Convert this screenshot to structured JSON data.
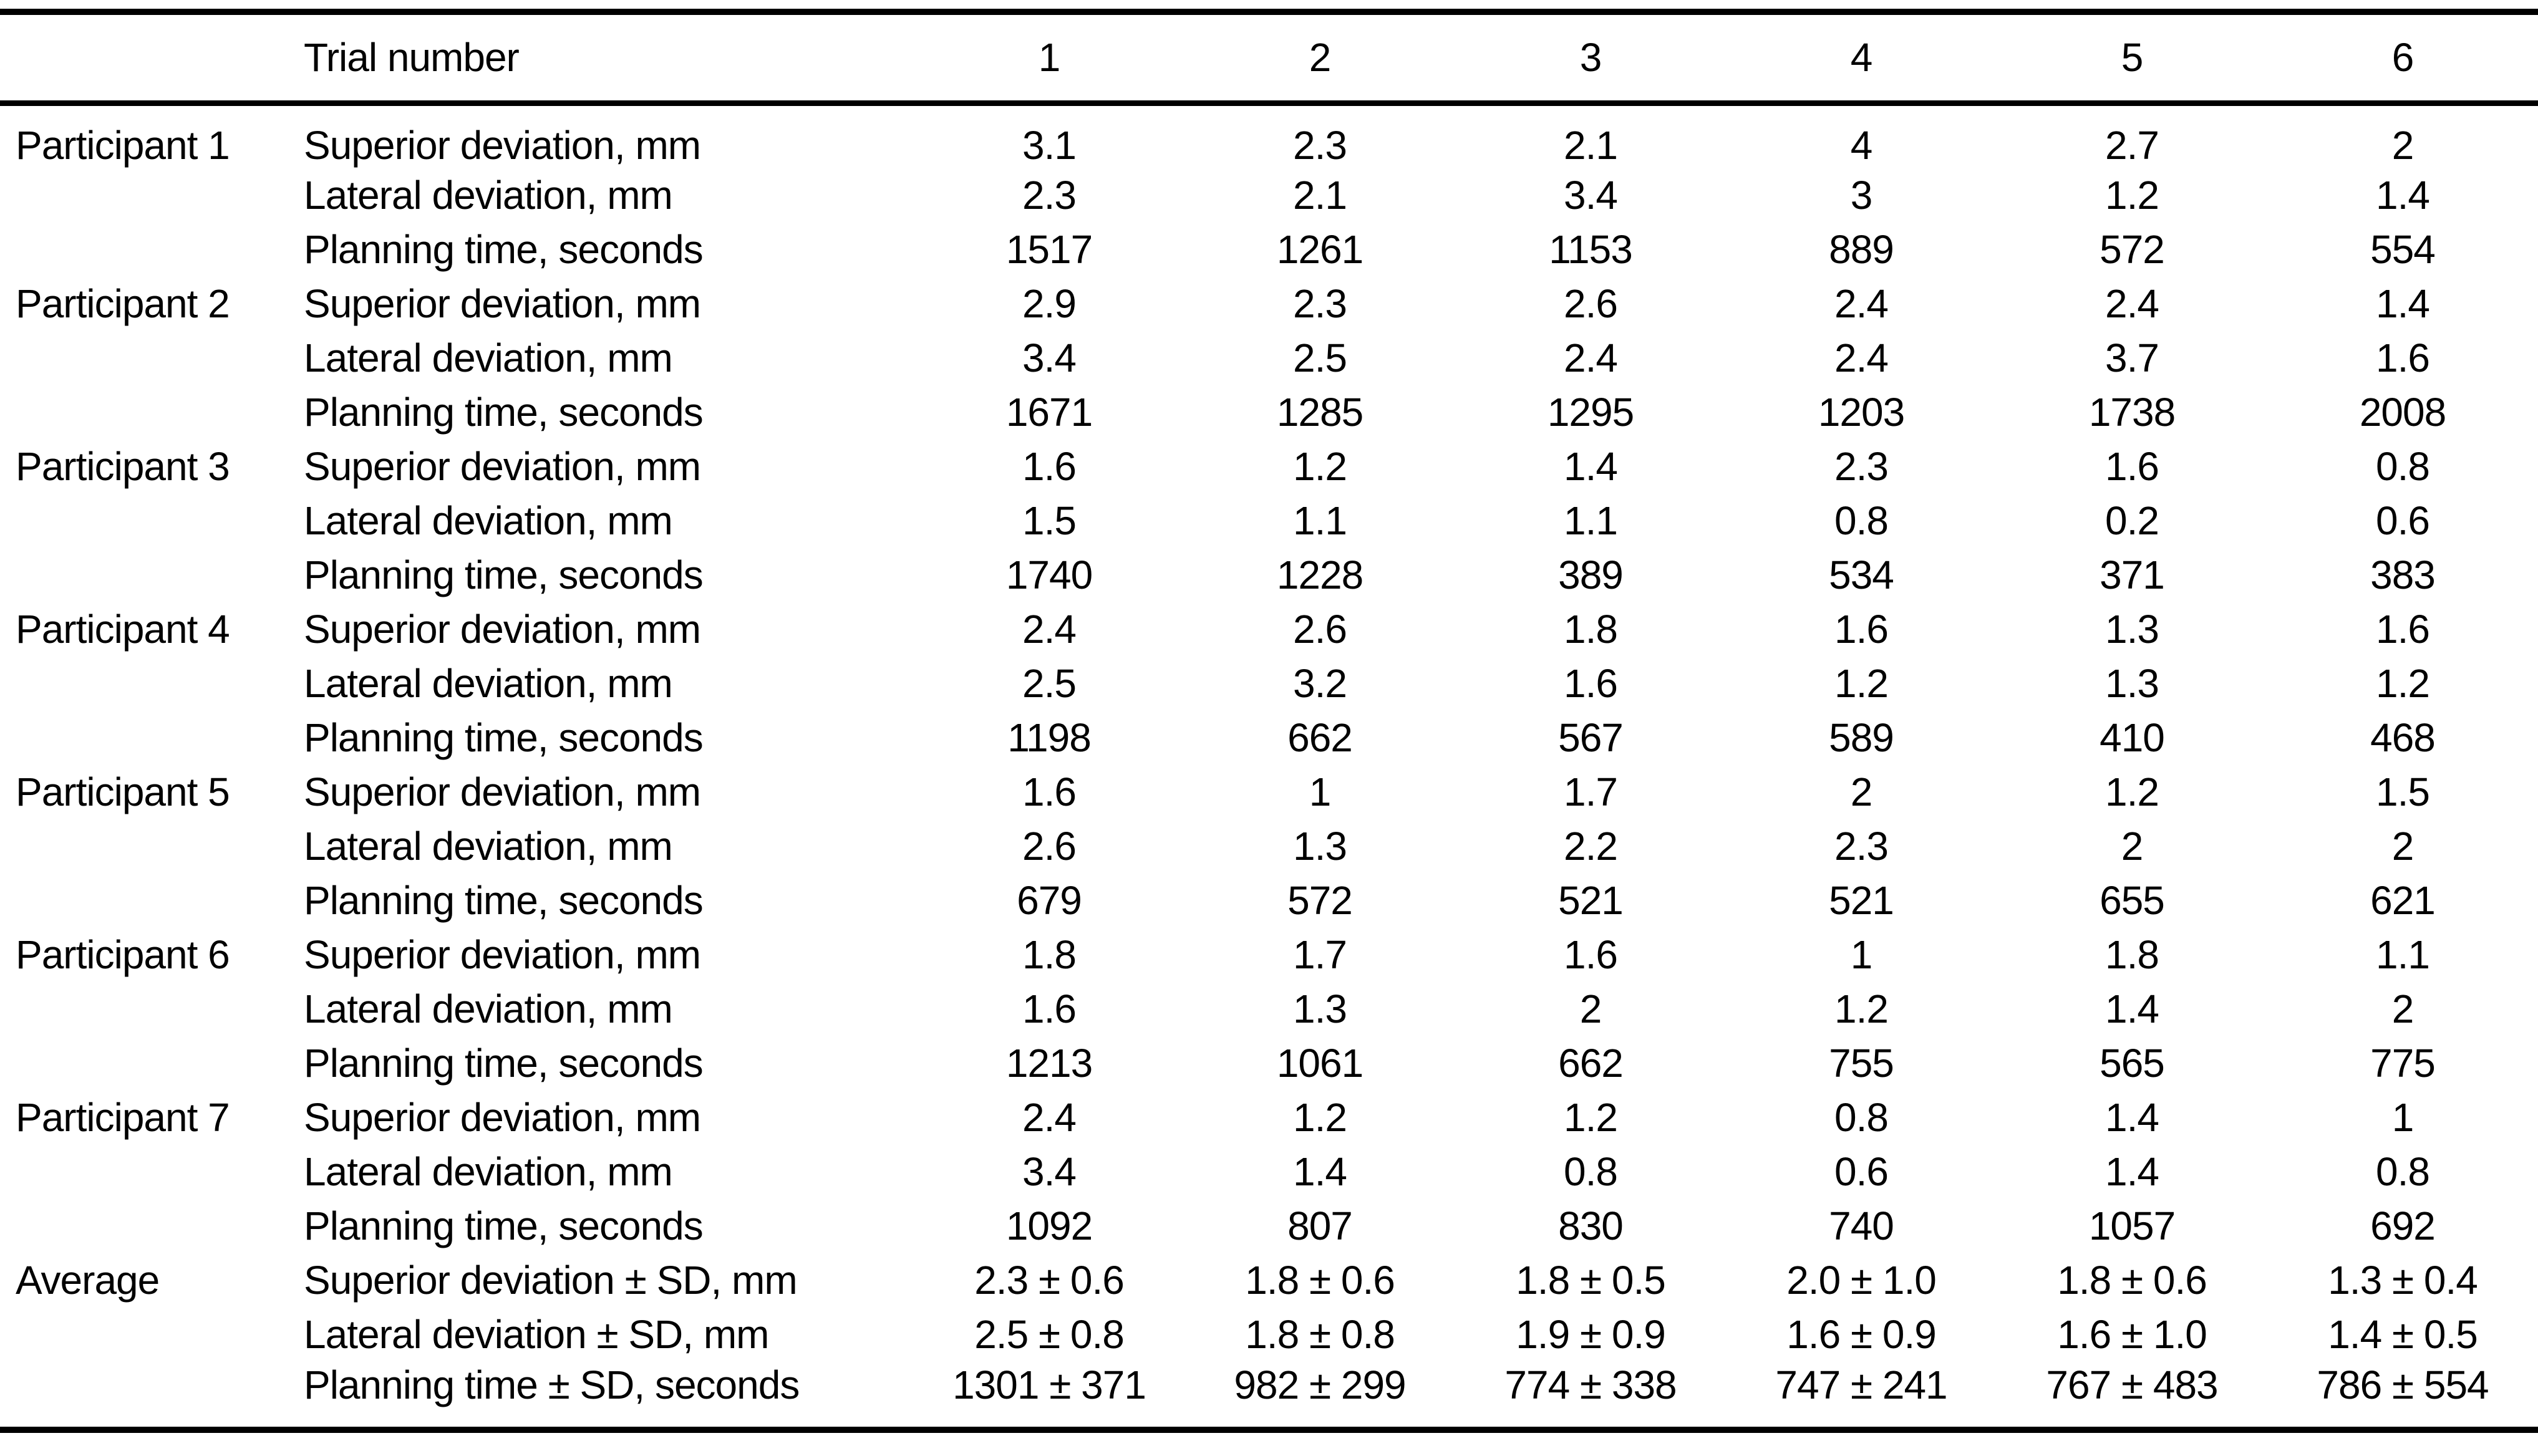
{
  "table": {
    "header": {
      "label": "Trial number",
      "trials": [
        "1",
        "2",
        "3",
        "4",
        "5",
        "6"
      ]
    },
    "participants": [
      {
        "name": "Participant 1",
        "rows": [
          {
            "label": "Superior deviation, mm",
            "values": [
              "3.1",
              "2.3",
              "2.1",
              "4",
              "2.7",
              "2"
            ]
          },
          {
            "label": "Lateral deviation, mm",
            "values": [
              "2.3",
              "2.1",
              "3.4",
              "3",
              "1.2",
              "1.4"
            ]
          },
          {
            "label": "Planning time, seconds",
            "values": [
              "1517",
              "1261",
              "1153",
              "889",
              "572",
              "554"
            ]
          }
        ]
      },
      {
        "name": "Participant 2",
        "rows": [
          {
            "label": "Superior deviation, mm",
            "values": [
              "2.9",
              "2.3",
              "2.6",
              "2.4",
              "2.4",
              "1.4"
            ]
          },
          {
            "label": "Lateral deviation, mm",
            "values": [
              "3.4",
              "2.5",
              "2.4",
              "2.4",
              "3.7",
              "1.6"
            ]
          },
          {
            "label": "Planning time, seconds",
            "values": [
              "1671",
              "1285",
              "1295",
              "1203",
              "1738",
              "2008"
            ]
          }
        ]
      },
      {
        "name": "Participant 3",
        "rows": [
          {
            "label": "Superior deviation, mm",
            "values": [
              "1.6",
              "1.2",
              "1.4",
              "2.3",
              "1.6",
              "0.8"
            ]
          },
          {
            "label": "Lateral deviation, mm",
            "values": [
              "1.5",
              "1.1",
              "1.1",
              "0.8",
              "0.2",
              "0.6"
            ]
          },
          {
            "label": "Planning time, seconds",
            "values": [
              "1740",
              "1228",
              "389",
              "534",
              "371",
              "383"
            ]
          }
        ]
      },
      {
        "name": "Participant 4",
        "rows": [
          {
            "label": "Superior deviation, mm",
            "values": [
              "2.4",
              "2.6",
              "1.8",
              "1.6",
              "1.3",
              "1.6"
            ]
          },
          {
            "label": "Lateral deviation, mm",
            "values": [
              "2.5",
              "3.2",
              "1.6",
              "1.2",
              "1.3",
              "1.2"
            ]
          },
          {
            "label": "Planning time, seconds",
            "values": [
              "1198",
              "662",
              "567",
              "589",
              "410",
              "468"
            ]
          }
        ]
      },
      {
        "name": "Participant 5",
        "rows": [
          {
            "label": "Superior deviation, mm",
            "values": [
              "1.6",
              "1",
              "1.7",
              "2",
              "1.2",
              "1.5"
            ]
          },
          {
            "label": "Lateral deviation, mm",
            "values": [
              "2.6",
              "1.3",
              "2.2",
              "2.3",
              "2",
              "2"
            ]
          },
          {
            "label": "Planning time, seconds",
            "values": [
              "679",
              "572",
              "521",
              "521",
              "655",
              "621"
            ]
          }
        ]
      },
      {
        "name": "Participant 6",
        "rows": [
          {
            "label": "Superior deviation, mm",
            "values": [
              "1.8",
              "1.7",
              "1.6",
              "1",
              "1.8",
              "1.1"
            ]
          },
          {
            "label": "Lateral deviation, mm",
            "values": [
              "1.6",
              "1.3",
              "2",
              "1.2",
              "1.4",
              "2"
            ]
          },
          {
            "label": "Planning time, seconds",
            "values": [
              "1213",
              "1061",
              "662",
              "755",
              "565",
              "775"
            ]
          }
        ]
      },
      {
        "name": "Participant 7",
        "rows": [
          {
            "label": "Superior deviation, mm",
            "values": [
              "2.4",
              "1.2",
              "1.2",
              "0.8",
              "1.4",
              "1"
            ]
          },
          {
            "label": "Lateral deviation, mm",
            "values": [
              "3.4",
              "1.4",
              "0.8",
              "0.6",
              "1.4",
              "0.8"
            ]
          },
          {
            "label": "Planning time, seconds",
            "values": [
              "1092",
              "807",
              "830",
              "740",
              "1057",
              "692"
            ]
          }
        ]
      },
      {
        "name": "Average",
        "rows": [
          {
            "label": "Superior deviation ± SD, mm",
            "values": [
              "2.3 ± 0.6",
              "1.8 ± 0.6",
              "1.8 ± 0.5",
              "2.0 ± 1.0",
              "1.8 ± 0.6",
              "1.3 ± 0.4"
            ]
          },
          {
            "label": "Lateral deviation ± SD, mm",
            "values": [
              "2.5 ± 0.8",
              "1.8 ± 0.8",
              "1.9 ± 0.9",
              "1.6 ± 0.9",
              "1.6 ± 1.0",
              "1.4 ± 0.5"
            ]
          },
          {
            "label": "Planning time ± SD, seconds",
            "values": [
              "1301 ± 371",
              "982 ± 299",
              "774 ± 338",
              "747 ± 241",
              "767 ± 483",
              "786 ± 554"
            ]
          }
        ]
      }
    ]
  }
}
